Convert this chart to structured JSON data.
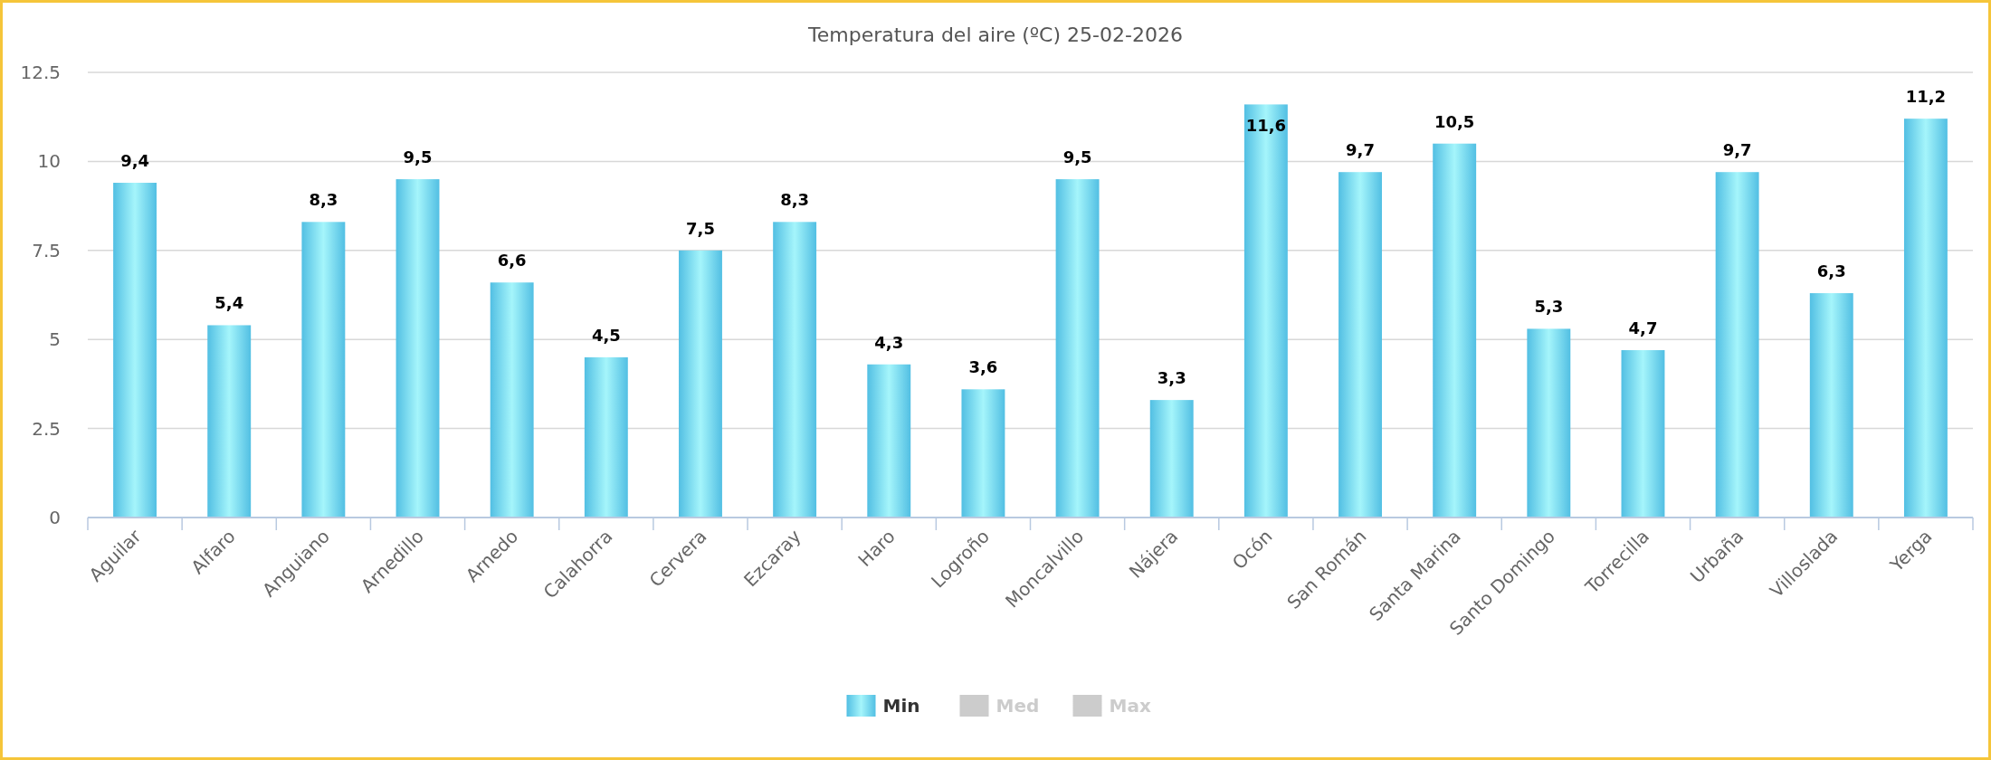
{
  "chart_data": {
    "type": "bar",
    "title": "Temperatura del aire (ºC) 25-02-2026",
    "categories": [
      "Aguilar",
      "Alfaro",
      "Anguiano",
      "Arnedillo",
      "Arnedo",
      "Calahorra",
      "Cervera",
      "Ezcaray",
      "Haro",
      "Logroño",
      "Moncalvillo",
      "Nájera",
      "Ocón",
      "San Román",
      "Santa Marina",
      "Santo Domingo",
      "Torrecilla",
      "Urbaña",
      "Villoslada",
      "Yerga"
    ],
    "series": [
      {
        "name": "Min",
        "color": "#52bfe3",
        "values": [
          9.4,
          5.4,
          8.3,
          9.5,
          6.6,
          4.5,
          7.5,
          8.3,
          4.3,
          3.6,
          9.5,
          3.3,
          11.6,
          9.7,
          10.5,
          5.3,
          4.7,
          9.7,
          6.3,
          11.2
        ],
        "value_labels": [
          "9,4",
          "5,4",
          "8,3",
          "9,5",
          "6,6",
          "4,5",
          "7,5",
          "8,3",
          "4,3",
          "3,6",
          "9,5",
          "3,3",
          "11,6",
          "9,7",
          "10,5",
          "5,3",
          "4,7",
          "9,7",
          "6,3",
          "11,2"
        ]
      },
      {
        "name": "Med",
        "color": "#cccccc",
        "values": [
          null,
          null,
          null,
          null,
          null,
          null,
          null,
          null,
          null,
          null,
          null,
          null,
          null,
          null,
          null,
          null,
          null,
          null,
          null,
          null
        ]
      },
      {
        "name": "Max",
        "color": "#cccccc",
        "values": [
          null,
          null,
          null,
          null,
          null,
          null,
          null,
          null,
          null,
          null,
          null,
          null,
          null,
          null,
          null,
          null,
          null,
          null,
          null,
          null
        ]
      }
    ],
    "ylim": [
      0,
      12.5
    ],
    "yticks": [
      0,
      2.5,
      5,
      7.5,
      10,
      12.5
    ],
    "grid": "y",
    "legend": "bottom"
  }
}
